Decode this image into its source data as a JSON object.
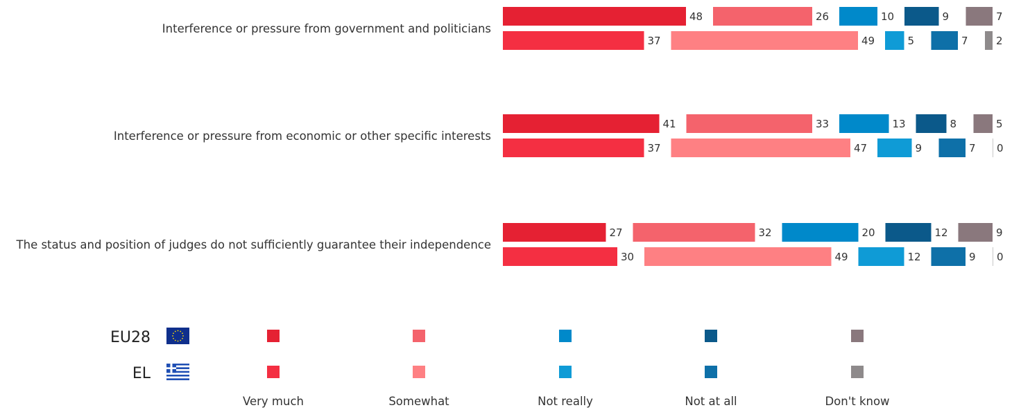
{
  "chart_data": {
    "type": "bar",
    "orientation": "horizontal-segmented",
    "title": "",
    "xlabel": "",
    "ylabel": "",
    "xlim": [
      0,
      100
    ],
    "grid": false,
    "legend_position": "bottom",
    "categories": [
      "Interference or pressure from government and politicians",
      "Interference or pressure from economic or other specific interests",
      "The status and position of judges do not sufficiently guarantee their independence"
    ],
    "series": [
      {
        "name": "Very much",
        "colors": {
          "EU28": "#e52133",
          "EL": "#f42f42"
        }
      },
      {
        "name": "Somewhat",
        "colors": {
          "EU28": "#f4636c",
          "EL": "#fe8083"
        }
      },
      {
        "name": "Not really",
        "colors": {
          "EU28": "#0089ca",
          "EL": "#0f9bd6"
        }
      },
      {
        "name": "Not at all",
        "colors": {
          "EU28": "#0b598a",
          "EL": "#0e70a8"
        }
      },
      {
        "name": "Don't know",
        "colors": {
          "EU28": "#8a787d",
          "EL": "#8e8a8b"
        }
      }
    ],
    "groups": [
      {
        "name": "EU28",
        "flag": "eu-flag-icon",
        "values": [
          [
            48,
            26,
            10,
            9,
            7
          ],
          [
            41,
            33,
            13,
            8,
            5
          ],
          [
            27,
            32,
            20,
            12,
            9
          ]
        ]
      },
      {
        "name": "EL",
        "flag": "greece-flag-icon",
        "values": [
          [
            37,
            49,
            5,
            7,
            2
          ],
          [
            37,
            47,
            9,
            7,
            0
          ],
          [
            30,
            49,
            12,
            9,
            0
          ]
        ]
      }
    ]
  }
}
